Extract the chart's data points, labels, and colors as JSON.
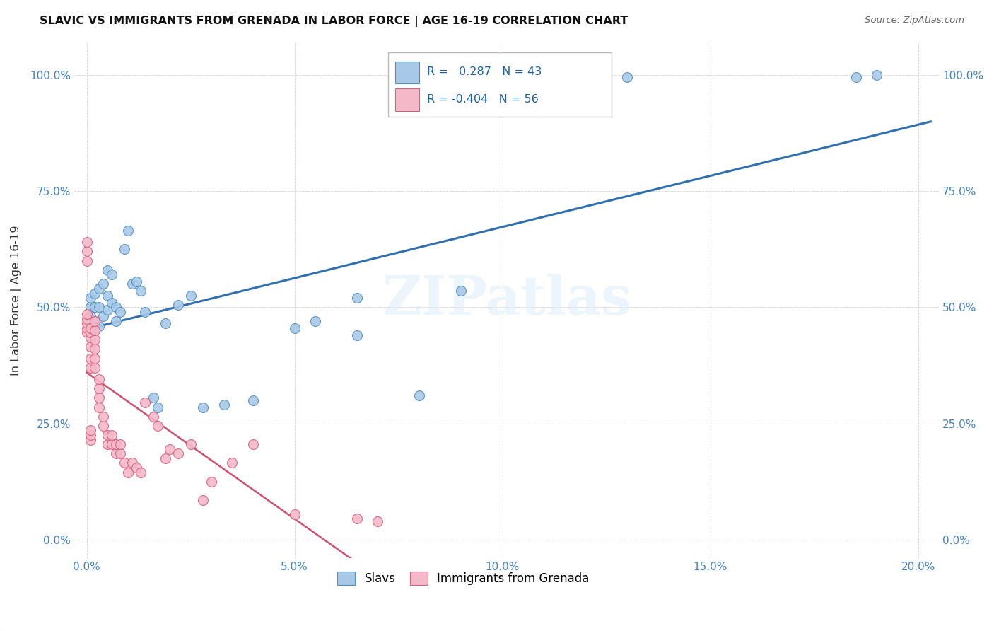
{
  "title": "SLAVIC VS IMMIGRANTS FROM GRENADA IN LABOR FORCE | AGE 16-19 CORRELATION CHART",
  "source": "Source: ZipAtlas.com",
  "ylabel": "In Labor Force | Age 16-19",
  "xlabel_ticks": [
    "0.0%",
    "5.0%",
    "10.0%",
    "15.0%",
    "20.0%"
  ],
  "xlabel_vals": [
    0.0,
    0.05,
    0.1,
    0.15,
    0.2
  ],
  "ylabel_ticks": [
    "0.0%",
    "25.0%",
    "50.0%",
    "75.0%",
    "100.0%"
  ],
  "ylabel_vals": [
    0.0,
    0.25,
    0.5,
    0.75,
    1.0
  ],
  "legend_label1": "Slavs",
  "legend_label2": "Immigrants from Grenada",
  "color_blue": "#a8c8e8",
  "color_pink": "#f4b8c8",
  "color_blue_edge": "#5090c0",
  "color_pink_edge": "#d86080",
  "color_blue_line": "#3070b0",
  "color_pink_line": "#d05070",
  "color_tick": "#4080c0",
  "watermark_text": "ZIPatlas",
  "slavs_x": [
    0.001,
    0.001,
    0.001,
    0.002,
    0.002,
    0.002,
    0.002,
    0.003,
    0.003,
    0.003,
    0.004,
    0.004,
    0.005,
    0.005,
    0.005,
    0.006,
    0.006,
    0.007,
    0.007,
    0.008,
    0.009,
    0.01,
    0.011,
    0.012,
    0.013,
    0.014,
    0.016,
    0.017,
    0.019,
    0.022,
    0.025,
    0.028,
    0.033,
    0.04,
    0.05,
    0.065,
    0.08,
    0.09,
    0.13,
    0.185,
    0.19,
    0.065,
    0.055
  ],
  "slavs_y": [
    0.5,
    0.52,
    0.48,
    0.455,
    0.47,
    0.5,
    0.53,
    0.46,
    0.5,
    0.54,
    0.48,
    0.55,
    0.495,
    0.525,
    0.58,
    0.51,
    0.57,
    0.47,
    0.5,
    0.49,
    0.625,
    0.665,
    0.55,
    0.555,
    0.535,
    0.49,
    0.305,
    0.285,
    0.465,
    0.505,
    0.525,
    0.285,
    0.29,
    0.3,
    0.455,
    0.44,
    0.31,
    0.535,
    0.995,
    0.995,
    1.0,
    0.52,
    0.47
  ],
  "grenada_x": [
    0.0,
    0.0,
    0.0,
    0.0,
    0.0,
    0.0,
    0.0,
    0.0,
    0.001,
    0.001,
    0.001,
    0.001,
    0.001,
    0.001,
    0.001,
    0.001,
    0.001,
    0.002,
    0.002,
    0.002,
    0.002,
    0.002,
    0.002,
    0.003,
    0.003,
    0.003,
    0.003,
    0.004,
    0.004,
    0.005,
    0.005,
    0.006,
    0.006,
    0.007,
    0.007,
    0.008,
    0.008,
    0.009,
    0.01,
    0.011,
    0.012,
    0.013,
    0.014,
    0.016,
    0.017,
    0.019,
    0.02,
    0.022,
    0.025,
    0.028,
    0.03,
    0.035,
    0.04,
    0.05,
    0.065,
    0.07
  ],
  "grenada_y": [
    0.445,
    0.455,
    0.465,
    0.475,
    0.485,
    0.6,
    0.62,
    0.64,
    0.37,
    0.39,
    0.415,
    0.435,
    0.445,
    0.455,
    0.215,
    0.225,
    0.235,
    0.37,
    0.39,
    0.41,
    0.43,
    0.45,
    0.47,
    0.285,
    0.305,
    0.325,
    0.345,
    0.245,
    0.265,
    0.205,
    0.225,
    0.205,
    0.225,
    0.185,
    0.205,
    0.185,
    0.205,
    0.165,
    0.145,
    0.165,
    0.155,
    0.145,
    0.295,
    0.265,
    0.245,
    0.175,
    0.195,
    0.185,
    0.205,
    0.085,
    0.125,
    0.165,
    0.205,
    0.055,
    0.045,
    0.04
  ],
  "xlim": [
    -0.003,
    0.205
  ],
  "ylim": [
    -0.04,
    1.07
  ]
}
